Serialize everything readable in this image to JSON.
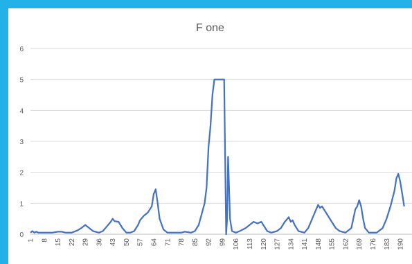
{
  "chart_data": {
    "type": "line",
    "title": "F one",
    "xlabel": "",
    "ylabel": "",
    "ylim": [
      0,
      6
    ],
    "xlim": [
      1,
      196
    ],
    "y_ticks": [
      "0",
      "1",
      "2",
      "3",
      "4",
      "5",
      "6"
    ],
    "x_ticks": [
      "1",
      "8",
      "15",
      "22",
      "29",
      "36",
      "43",
      "50",
      "57",
      "64",
      "71",
      "78",
      "85",
      "92",
      "99",
      "106",
      "113",
      "120",
      "127",
      "134",
      "141",
      "148",
      "155",
      "162",
      "169",
      "176",
      "183",
      "190"
    ],
    "grid": true,
    "legend": "none",
    "color": "#4472c4",
    "series": [
      {
        "x": [
          1,
          2,
          3,
          4,
          5,
          6,
          8,
          10,
          12,
          15,
          17,
          19,
          22,
          25,
          27,
          29,
          31,
          33,
          36,
          38,
          40,
          42,
          43,
          44,
          46,
          48,
          50,
          52,
          54,
          56,
          57,
          59,
          61,
          63,
          64,
          65,
          66,
          67,
          69,
          71,
          73,
          76,
          78,
          80,
          83,
          85,
          87,
          90,
          91,
          92,
          93,
          94,
          95,
          96,
          97,
          98,
          99,
          100,
          101,
          101.5,
          102,
          103,
          104,
          106,
          108,
          111,
          113,
          115,
          117,
          119,
          120,
          122,
          124,
          127,
          129,
          131,
          133,
          134,
          135,
          136,
          138,
          141,
          143,
          145,
          147,
          148,
          149,
          150,
          152,
          155,
          157,
          159,
          162,
          165,
          167,
          168,
          169,
          170,
          171,
          172,
          174,
          176,
          178,
          181,
          183,
          185,
          187,
          188,
          189,
          190,
          191,
          192
        ],
        "y": [
          0.05,
          0.1,
          0.05,
          0.08,
          0.05,
          0.05,
          0.05,
          0.05,
          0.05,
          0.08,
          0.08,
          0.05,
          0.05,
          0.12,
          0.2,
          0.3,
          0.2,
          0.1,
          0.05,
          0.1,
          0.25,
          0.4,
          0.5,
          0.42,
          0.4,
          0.2,
          0.05,
          0.05,
          0.1,
          0.3,
          0.45,
          0.6,
          0.7,
          0.9,
          1.3,
          1.45,
          1.0,
          0.5,
          0.15,
          0.05,
          0.05,
          0.05,
          0.05,
          0.08,
          0.05,
          0.1,
          0.3,
          1.0,
          1.5,
          2.8,
          3.5,
          4.5,
          5.0,
          5.0,
          5.0,
          5.0,
          5.0,
          5.0,
          0.0,
          0.5,
          2.5,
          0.5,
          0.1,
          0.05,
          0.1,
          0.2,
          0.3,
          0.4,
          0.35,
          0.4,
          0.3,
          0.1,
          0.05,
          0.1,
          0.2,
          0.4,
          0.55,
          0.4,
          0.45,
          0.3,
          0.1,
          0.05,
          0.2,
          0.5,
          0.8,
          0.95,
          0.85,
          0.9,
          0.7,
          0.4,
          0.2,
          0.1,
          0.05,
          0.2,
          0.8,
          0.9,
          1.1,
          0.9,
          0.5,
          0.2,
          0.05,
          0.05,
          0.05,
          0.2,
          0.5,
          0.9,
          1.4,
          1.8,
          1.95,
          1.7,
          1.3,
          0.9
        ]
      }
    ]
  }
}
